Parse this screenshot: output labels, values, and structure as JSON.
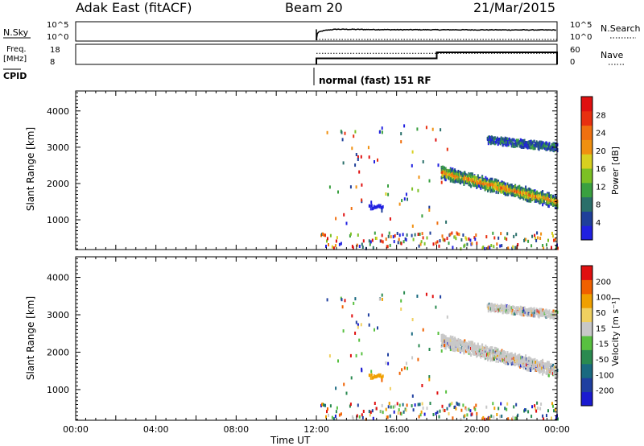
{
  "header": {
    "station": "Adak East (fitACF)",
    "beam": "Beam 20",
    "date": "21/Mar/2015"
  },
  "nsky_panel": {
    "left_label": "N.Sky",
    "right_label": "N.Search",
    "left_ticks": [
      "10^5",
      "10^0"
    ],
    "right_ticks": [
      "10^5",
      "10^0"
    ]
  },
  "freq_panel": {
    "left_label_line1": "Freq.",
    "left_label_line2": "[MHz]",
    "right_label": "Nave",
    "left_ticks": [
      "18",
      "8"
    ],
    "right_ticks": [
      "60",
      "0"
    ]
  },
  "cpid": {
    "label": "CPID",
    "mode_text": "normal (fast) 151 RF"
  },
  "colors": {
    "power": [
      "#2020e0",
      "#1f3f9a",
      "#2a6f6a",
      "#3aa040",
      "#7cc024",
      "#d8d020",
      "#f09010",
      "#f07010",
      "#e83010",
      "#e01010"
    ],
    "velocity": [
      "#e01010",
      "#f06000",
      "#f0a000",
      "#f0d060",
      "#c8c8c8",
      "#58c040",
      "#2a8a50",
      "#1a6a80",
      "#1f3fa0",
      "#1a1ad0"
    ]
  },
  "chart_data": [
    {
      "type": "line",
      "panel": "N.Sky / N.Search",
      "series": [
        {
          "name": "N.Sky",
          "x": [
            "12:00",
            "13:00",
            "14:00",
            "15:00",
            "16:00",
            "17:00",
            "18:00",
            "19:00",
            "20:00",
            "21:00",
            "22:00",
            "23:00",
            "24:00"
          ],
          "values": [
            0,
            2500,
            2200,
            2000,
            1800,
            1800,
            1700,
            1700,
            1600,
            1600,
            1550,
            1500,
            1500
          ]
        },
        {
          "name": "N.Search",
          "x": [
            "12:00",
            "14:00",
            "16:00",
            "18:00",
            "20:00",
            "22:00",
            "24:00"
          ],
          "values": [
            1,
            1,
            1,
            1,
            1,
            1,
            1
          ]
        }
      ],
      "ylim": [
        1,
        100000
      ]
    },
    {
      "type": "line",
      "panel": "Freq. / Nave",
      "series": [
        {
          "name": "Freq.",
          "x": [
            "12:00",
            "18:00",
            "18:00",
            "24:00"
          ],
          "values": [
            11,
            11,
            14,
            14
          ]
        },
        {
          "name": "Nave",
          "x": [
            "12:00",
            "18:00",
            "24:00"
          ],
          "values": [
            33,
            33,
            33
          ]
        }
      ],
      "ylim": [
        8,
        18
      ]
    },
    {
      "type": "heatmap",
      "panel": "power",
      "ylabel": "Slant Range [km]",
      "xlabel": "Time UT",
      "x_ticks": [
        "00:00",
        "04:00",
        "08:00",
        "12:00",
        "16:00",
        "20:00",
        "00:00"
      ],
      "y_ticks": [
        "1000",
        "2000",
        "3000",
        "4000"
      ],
      "xlim": [
        0,
        24
      ],
      "ylim": [
        180,
        4550
      ],
      "colorbar": {
        "label": "Power [dB]",
        "ticks": [
          "4",
          "8",
          "12",
          "16",
          "20",
          "24",
          "28"
        ],
        "range": [
          0,
          30
        ]
      }
    },
    {
      "type": "heatmap",
      "panel": "velocity",
      "ylabel": "Slant Range [km]",
      "xlabel": "Time UT",
      "x_ticks": [
        "00:00",
        "04:00",
        "08:00",
        "12:00",
        "16:00",
        "20:00",
        "00:00"
      ],
      "y_ticks": [
        "1000",
        "2000",
        "3000",
        "4000"
      ],
      "xlim": [
        0,
        24
      ],
      "ylim": [
        180,
        4550
      ],
      "colorbar": {
        "label": "Velocity [m s⁻¹]",
        "ticks": [
          "200",
          "100",
          "50",
          "15",
          "-15",
          "-50",
          "-100",
          "-200"
        ]
      }
    }
  ]
}
